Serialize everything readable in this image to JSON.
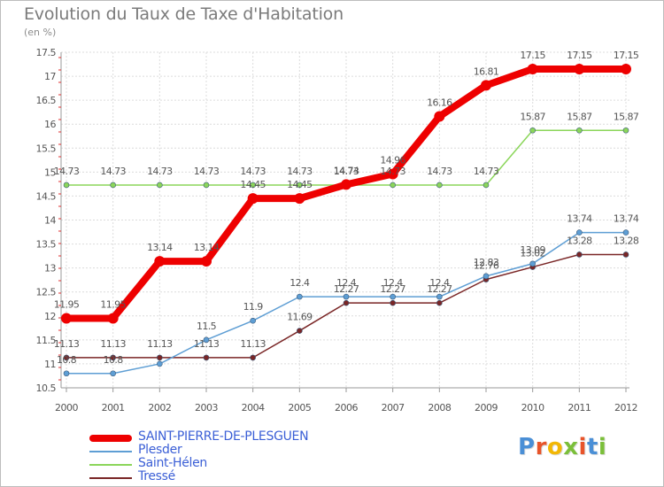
{
  "chart_data": {
    "type": "line",
    "title": "Evolution du Taux de Taxe d'Habitation",
    "subtitle": "(en %)",
    "xlabel": "",
    "ylabel": "",
    "x": [
      "2000",
      "2001",
      "2002",
      "2003",
      "2004",
      "2005",
      "2006",
      "2007",
      "2008",
      "2009",
      "2010",
      "2011",
      "2012"
    ],
    "ylim": [
      10.5,
      17.5
    ],
    "yticks": [
      "10.5",
      "11",
      "11.5",
      "12",
      "12.5",
      "13",
      "13.5",
      "14",
      "14.5",
      "15",
      "15.5",
      "16",
      "16.5",
      "17",
      "17.5"
    ],
    "grid": true,
    "legend_position": "bottom-left",
    "series": [
      {
        "name": "SAINT-PIERRE-DE-PLESGUEN",
        "color": "#ee0000",
        "values": [
          11.95,
          11.95,
          13.14,
          13.14,
          14.45,
          14.45,
          14.74,
          14.96,
          16.16,
          16.81,
          17.15,
          17.15,
          17.15
        ],
        "labels": [
          "11.95",
          "11.95",
          "13.14",
          "13.14",
          "14.45",
          "14.45",
          "14.74",
          "14.96",
          "16.16",
          "16.81",
          "17.15",
          "17.15",
          "17.15"
        ]
      },
      {
        "name": "Plesder",
        "color": "#5e9ed4",
        "values": [
          10.8,
          10.8,
          11.0,
          11.5,
          11.9,
          12.4,
          12.4,
          12.4,
          12.4,
          12.83,
          13.09,
          13.74,
          13.74
        ],
        "labels": [
          "10.8",
          "10.8",
          "",
          "11.5",
          "11.9",
          "12.4",
          "12.4",
          "12.4",
          "12.4",
          "12.83",
          "13.09",
          "13.74",
          "13.74"
        ]
      },
      {
        "name": "Saint-Hélen",
        "color": "#8bd65a",
        "values": [
          14.73,
          14.73,
          14.73,
          14.73,
          14.73,
          14.73,
          14.73,
          14.73,
          14.73,
          14.73,
          15.87,
          15.87,
          15.87
        ],
        "labels": [
          "14.73",
          "14.73",
          "14.73",
          "14.73",
          "14.73",
          "14.73",
          "14.73",
          "14.73",
          "14.73",
          "14.73",
          "15.87",
          "15.87",
          "15.87"
        ]
      },
      {
        "name": "Tressé",
        "color": "#7a2626",
        "values": [
          11.13,
          11.13,
          11.13,
          11.13,
          11.13,
          11.69,
          12.27,
          12.27,
          12.27,
          12.76,
          13.02,
          13.28,
          13.28
        ],
        "labels": [
          "11.13",
          "11.13",
          "11.13",
          "11.13",
          "11.13",
          "11.69",
          "12.27",
          "12.27",
          "12.27",
          "12.76",
          "13.02",
          "13.28",
          "13.28"
        ]
      }
    ]
  },
  "brand": {
    "logo_text": "Proxiti",
    "logo_colors": [
      "#4a8fd6",
      "#e8542a",
      "#f2b705",
      "#7bbf3a",
      "#e8542a",
      "#4a8fd6",
      "#7bbf3a"
    ]
  }
}
